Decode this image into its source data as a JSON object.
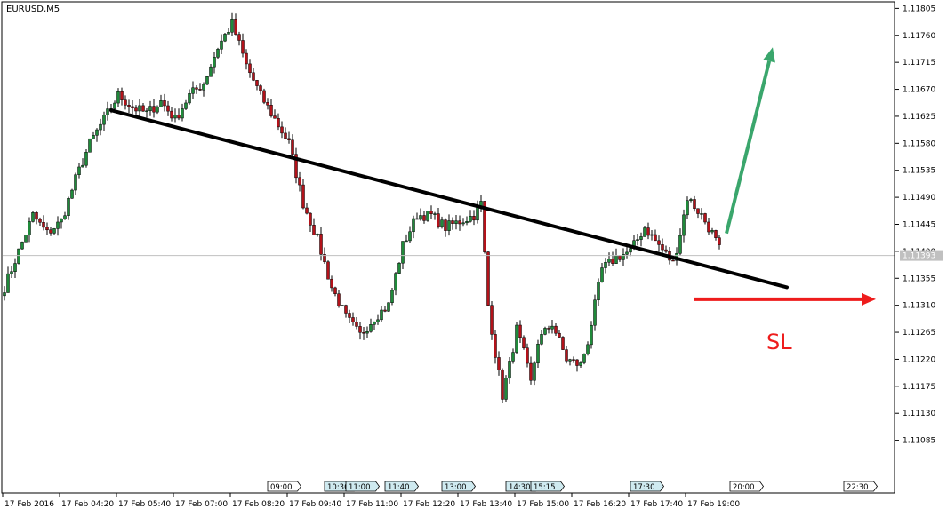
{
  "window": {
    "title": "EURUSD,M5"
  },
  "annotations": {
    "sl_label": "SL"
  },
  "colors": {
    "bull_body": "#1f8a3a",
    "bear_body": "#b3121a",
    "wick": "#000000",
    "trendline": "#000000",
    "up_arrow": "#3aa66c",
    "sl_arrow": "#ee1c1c",
    "price_line": "#c0c0c0",
    "session_marker_fill": "#cfeaf0"
  },
  "chart_data": {
    "type": "candlestick",
    "symbol": "EURUSD",
    "timeframe": "M5",
    "ylim": [
      1.1104,
      1.1181
    ],
    "y_ticks": [
      "1.11805",
      "1.11760",
      "1.11715",
      "1.11670",
      "1.11625",
      "1.11580",
      "1.11535",
      "1.11490",
      "1.11445",
      "1.11400",
      "1.11355",
      "1.11310",
      "1.11265",
      "1.11220",
      "1.11175",
      "1.11130",
      "1.11085"
    ],
    "current_price": 1.11393,
    "current_price_label": "1.11393",
    "x_tick_labels": [
      "17 Feb 2016",
      "17 Feb 04:20",
      "17 Feb 05:40",
      "17 Feb 07:00",
      "17 Feb 08:20",
      "17 Feb 09:40",
      "17 Feb 11:00",
      "17 Feb 12:20",
      "17 Feb 13:40",
      "17 Feb 15:00",
      "17 Feb 16:20",
      "17 Feb 17:40",
      "17 Feb 19:00"
    ],
    "session_markers": [
      "09:00",
      "10:30",
      "11:00",
      "11:40",
      "13:00",
      "14:30",
      "15:15",
      "17:30",
      "20:00",
      "22:30"
    ],
    "trendline": {
      "start": {
        "bar": 30,
        "price": 1.11635
      },
      "end": {
        "bar": 220,
        "price": 1.1134
      }
    },
    "target_arrow": {
      "start": {
        "bar": 203,
        "price": 1.1143
      },
      "end": {
        "bar": 216,
        "price": 1.1174
      }
    },
    "stop_loss_arrow": {
      "start": {
        "bar": 194,
        "price": 1.1132
      },
      "end": {
        "bar": 245,
        "price": 1.1132
      }
    },
    "close_path": [
      [
        0,
        1.1134
      ],
      [
        4,
        1.114
      ],
      [
        8,
        1.1146
      ],
      [
        12,
        1.1143
      ],
      [
        16,
        1.1145
      ],
      [
        20,
        1.1152
      ],
      [
        24,
        1.1158
      ],
      [
        28,
        1.1162
      ],
      [
        32,
        1.1166
      ],
      [
        36,
        1.1164
      ],
      [
        40,
        1.1163
      ],
      [
        44,
        1.1165
      ],
      [
        48,
        1.1162
      ],
      [
        52,
        1.1166
      ],
      [
        56,
        1.1168
      ],
      [
        60,
        1.1174
      ],
      [
        64,
        1.1178
      ],
      [
        68,
        1.1171
      ],
      [
        72,
        1.1166
      ],
      [
        76,
        1.1162
      ],
      [
        80,
        1.1158
      ],
      [
        84,
        1.1148
      ],
      [
        88,
        1.1142
      ],
      [
        92,
        1.1134
      ],
      [
        96,
        1.1129
      ],
      [
        100,
        1.1126
      ],
      [
        104,
        1.1129
      ],
      [
        108,
        1.1131
      ],
      [
        112,
        1.1141
      ],
      [
        116,
        1.1146
      ],
      [
        120,
        1.1146
      ],
      [
        124,
        1.1144
      ],
      [
        128,
        1.1145
      ],
      [
        132,
        1.1146
      ],
      [
        134,
        1.1148
      ],
      [
        136,
        1.1131
      ],
      [
        138,
        1.1123
      ],
      [
        140,
        1.1116
      ],
      [
        142,
        1.1121
      ],
      [
        144,
        1.1127
      ],
      [
        146,
        1.1123
      ],
      [
        148,
        1.1118
      ],
      [
        150,
        1.1125
      ],
      [
        154,
        1.1128
      ],
      [
        158,
        1.1122
      ],
      [
        162,
        1.1121
      ],
      [
        164,
        1.1125
      ],
      [
        168,
        1.1137
      ],
      [
        172,
        1.1139
      ],
      [
        176,
        1.114
      ],
      [
        180,
        1.1144
      ],
      [
        184,
        1.1141
      ],
      [
        188,
        1.1138
      ],
      [
        190,
        1.1143
      ],
      [
        192,
        1.1149
      ],
      [
        196,
        1.1146
      ],
      [
        199,
        1.1143
      ],
      [
        202,
        1.1139
      ]
    ],
    "marks": {
      "bars": 202
    }
  }
}
